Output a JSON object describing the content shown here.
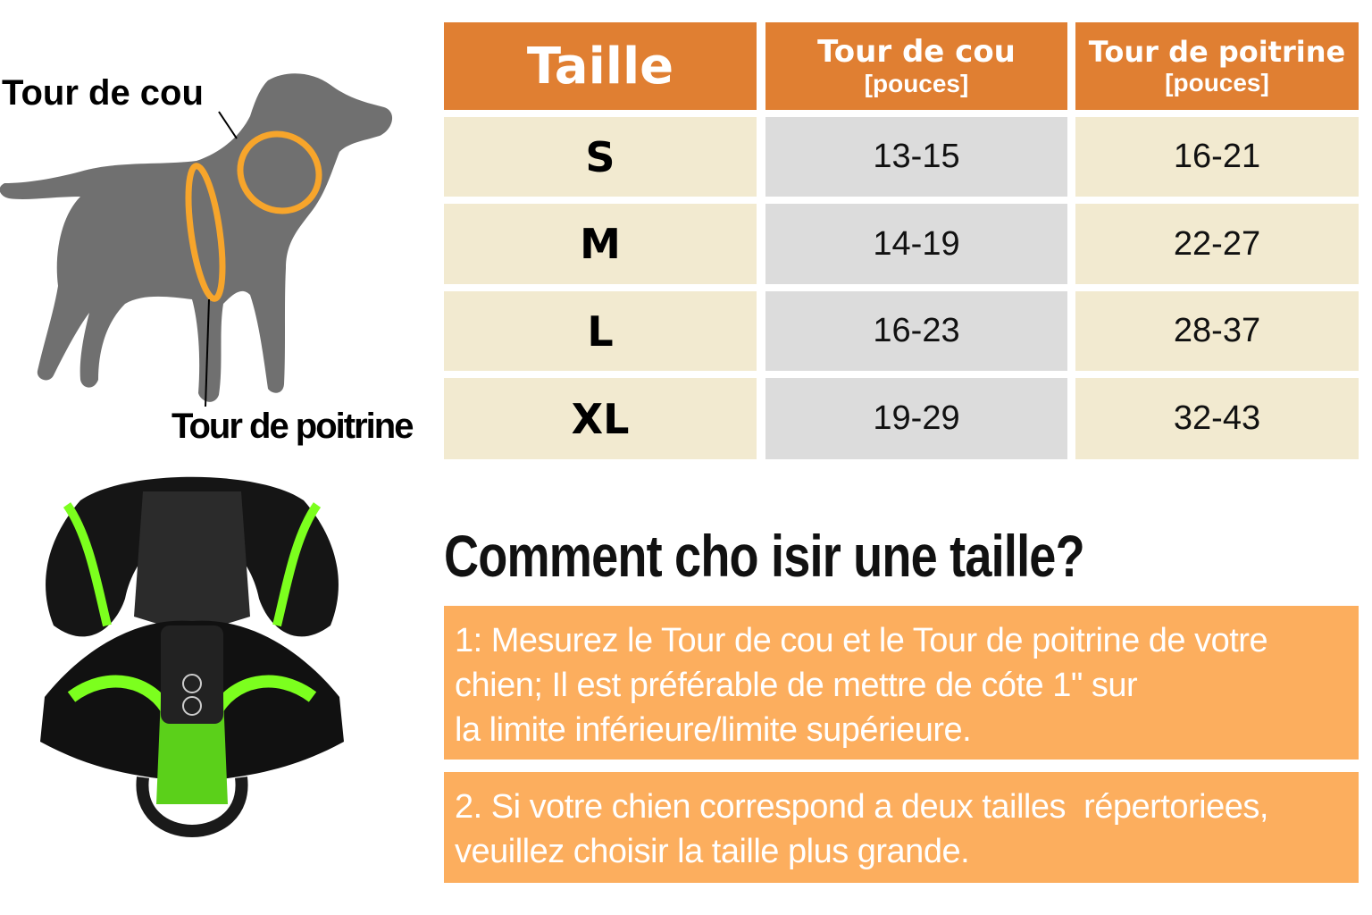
{
  "diagram": {
    "neck_label": "Tour de cou",
    "chest_label": "Tour de poitrine",
    "dog_color": "#707070",
    "ring_color": "#f7a52b"
  },
  "table": {
    "headers": [
      {
        "title": "Taille",
        "unit": ""
      },
      {
        "title": "Tour de cou",
        "unit": "[pouces]"
      },
      {
        "title": "Tour de poitrine",
        "unit": "[pouces]"
      }
    ],
    "rows": [
      {
        "size": "S",
        "neck": "13-15",
        "chest": "16-21"
      },
      {
        "size": "M",
        "neck": "14-19",
        "chest": "22-27"
      },
      {
        "size": "L",
        "neck": "16-23",
        "chest": "28-37"
      },
      {
        "size": "XL",
        "neck": "19-29",
        "chest": "32-43"
      }
    ],
    "header_color": "#e07f32"
  },
  "guide": {
    "heading": "Comment cho isir une taille?",
    "step1": [
      "1: Mesurez le Tour de cou et le Tour de poitrine de votre",
      "chien; Il est préférable de mettre de cóte 1\" sur",
      "la limite inférieure/limite supérieure."
    ],
    "step2": [
      "2. Si votre chien correspond a deux tailles  répertoriees,",
      "veuillez choisir la taille plus grande."
    ],
    "box_color": "#fcae5e"
  }
}
